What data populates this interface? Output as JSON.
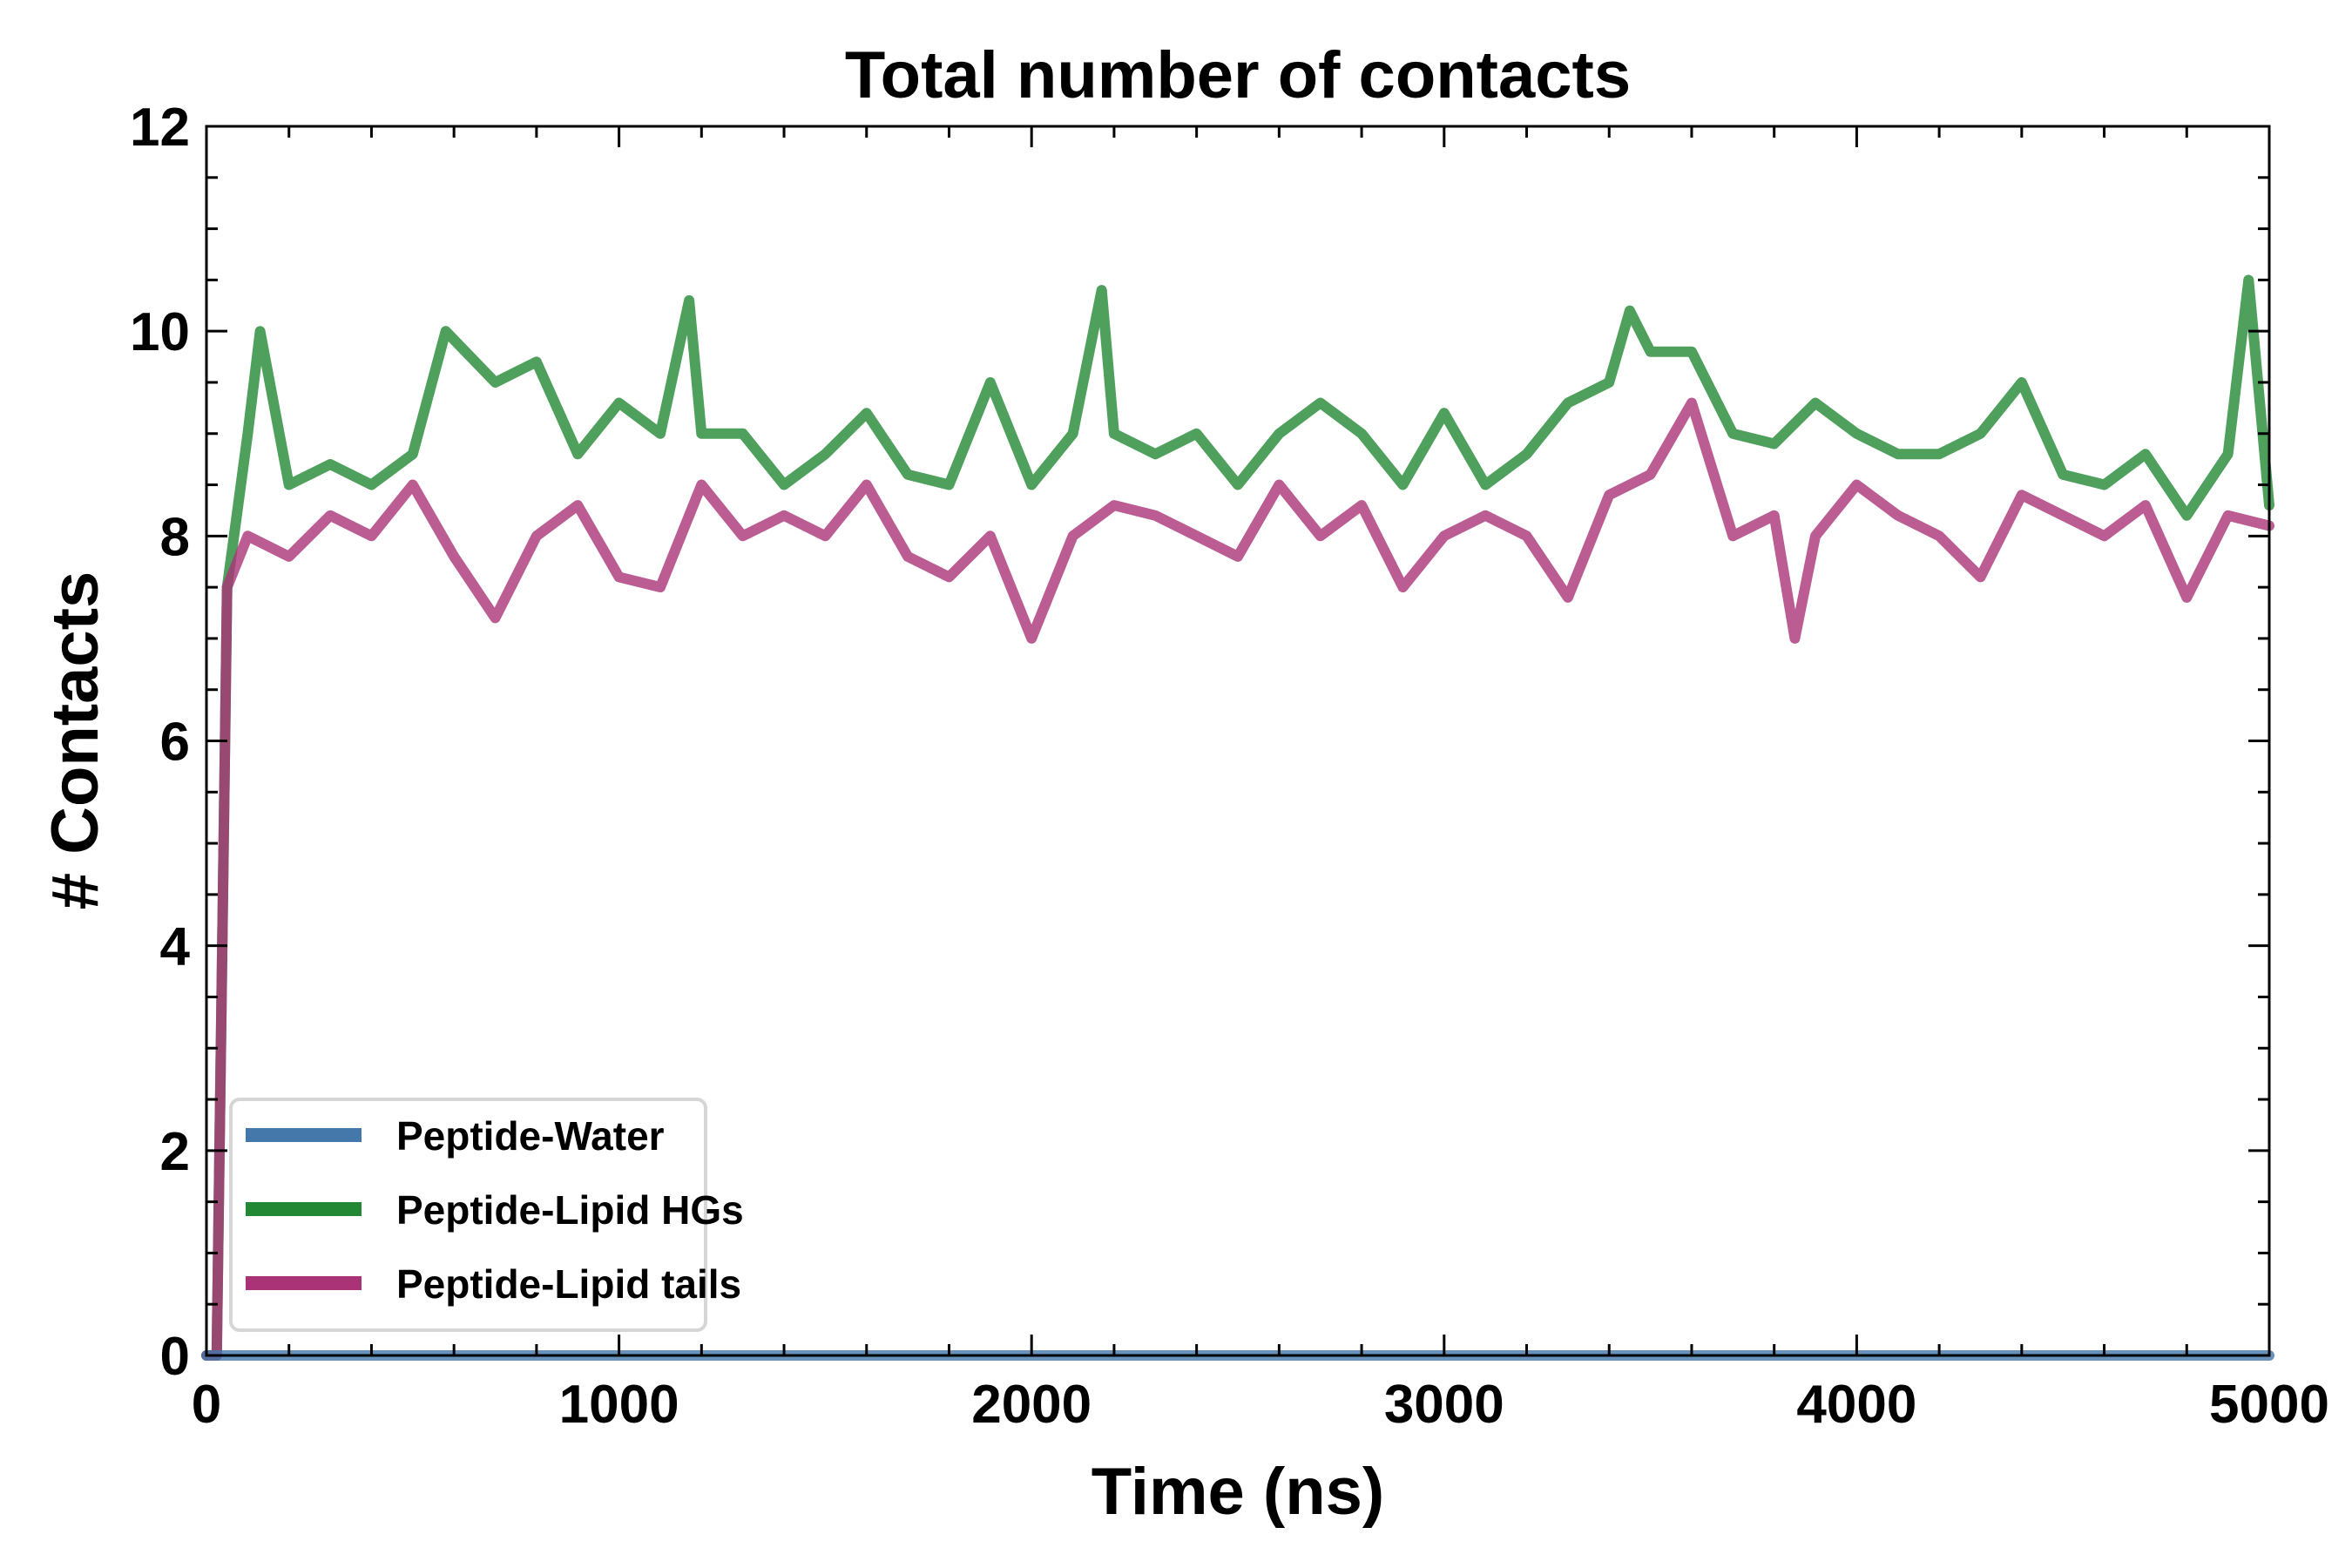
{
  "chart_data": {
    "type": "line",
    "title": "Total number of contacts",
    "xlabel": "Time (ns)",
    "ylabel": "# Contacts",
    "xlim": [
      0,
      5000
    ],
    "ylim": [
      0,
      12
    ],
    "xticks": [
      "0",
      "1000",
      "2000",
      "3000",
      "4000",
      "5000"
    ],
    "yticks": [
      "0",
      "2",
      "4",
      "6",
      "8",
      "10",
      "12"
    ],
    "grid": false,
    "legend_position": "lower-left",
    "series": [
      {
        "name": "Peptide-Water",
        "color": "#4477aa",
        "x": [
          0,
          5000
        ],
        "y": [
          0,
          0
        ]
      },
      {
        "name": "Peptide-Lipid HGs",
        "color": "#228833",
        "x": [
          0,
          25,
          50,
          100,
          130,
          200,
          300,
          400,
          500,
          580,
          700,
          800,
          900,
          1000,
          1100,
          1170,
          1200,
          1300,
          1400,
          1500,
          1600,
          1700,
          1800,
          1900,
          2000,
          2100,
          2170,
          2200,
          2300,
          2400,
          2500,
          2600,
          2700,
          2800,
          2900,
          3000,
          3100,
          3200,
          3300,
          3400,
          3450,
          3500,
          3600,
          3700,
          3800,
          3900,
          4000,
          4100,
          4200,
          4300,
          4400,
          4500,
          4600,
          4700,
          4800,
          4900,
          4950,
          5000
        ],
        "y": [
          0,
          0,
          7.5,
          9,
          10,
          8.5,
          8.7,
          8.5,
          8.8,
          10,
          9.5,
          9.7,
          8.8,
          9.3,
          9,
          10.3,
          9,
          9,
          8.5,
          8.8,
          9.2,
          8.6,
          8.5,
          9.5,
          8.5,
          9,
          10.4,
          9,
          8.8,
          9,
          8.5,
          9,
          9.3,
          9,
          8.5,
          9.2,
          8.5,
          8.8,
          9.3,
          9.5,
          10.2,
          9.8,
          9.8,
          9,
          8.9,
          9.3,
          9,
          8.8,
          8.8,
          9,
          9.5,
          8.6,
          8.5,
          8.8,
          8.2,
          8.8,
          10.5,
          8.3
        ]
      },
      {
        "name": "Peptide-Lipid tails",
        "color": "#aa3377",
        "x": [
          0,
          25,
          50,
          100,
          200,
          300,
          400,
          500,
          600,
          700,
          800,
          900,
          1000,
          1100,
          1200,
          1300,
          1400,
          1500,
          1600,
          1700,
          1800,
          1900,
          2000,
          2100,
          2200,
          2300,
          2400,
          2500,
          2600,
          2700,
          2800,
          2900,
          3000,
          3100,
          3200,
          3300,
          3400,
          3500,
          3600,
          3700,
          3800,
          3850,
          3900,
          4000,
          4100,
          4200,
          4300,
          4400,
          4500,
          4600,
          4700,
          4800,
          4900,
          5000
        ],
        "y": [
          0,
          0,
          7.5,
          8,
          7.8,
          8.2,
          8,
          8.5,
          7.8,
          7.2,
          8,
          8.3,
          7.6,
          7.5,
          8.5,
          8,
          8.2,
          8,
          8.5,
          7.8,
          7.6,
          8,
          7,
          8,
          8.3,
          8.2,
          8,
          7.8,
          8.5,
          8,
          8.3,
          7.5,
          8,
          8.2,
          8,
          7.4,
          8.4,
          8.6,
          9.3,
          8,
          8.2,
          7,
          8,
          8.5,
          8.2,
          8,
          7.6,
          8.4,
          8.2,
          8,
          8.3,
          7.4,
          8.2,
          8.1
        ]
      }
    ]
  }
}
